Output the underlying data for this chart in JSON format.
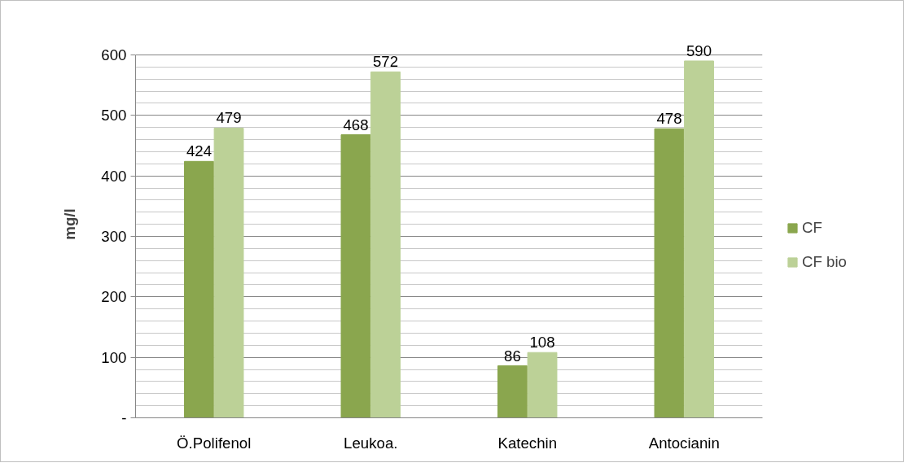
{
  "chart_data": {
    "type": "bar",
    "ylabel": "mg/l",
    "categories": [
      "Ö.Polifenol",
      "Leukoa.",
      "Katechin",
      "Antocianin"
    ],
    "series": [
      {
        "name": "CF",
        "color": "#8aa64e",
        "values": [
          424,
          468,
          86,
          478
        ]
      },
      {
        "name": "CF bio",
        "color": "#bcd197",
        "values": [
          479,
          572,
          108,
          590
        ]
      }
    ],
    "ylim": [
      0,
      600
    ],
    "yticks": [
      {
        "value": 0,
        "label": "-"
      },
      {
        "value": 20,
        "label": null
      },
      {
        "value": 40,
        "label": null
      },
      {
        "value": 60,
        "label": null
      },
      {
        "value": 80,
        "label": null
      },
      100,
      {
        "value": 120,
        "label": null
      },
      {
        "value": 140,
        "label": null
      },
      {
        "value": 160,
        "label": null
      },
      {
        "value": 180,
        "label": null
      },
      200,
      {
        "value": 220,
        "label": null
      },
      {
        "value": 240,
        "label": null
      },
      {
        "value": 260,
        "label": null
      },
      {
        "value": 280,
        "label": null
      },
      300,
      {
        "value": 320,
        "label": null
      },
      {
        "value": 340,
        "label": null
      },
      {
        "value": 360,
        "label": null
      },
      {
        "value": 380,
        "label": null
      },
      400,
      {
        "value": 420,
        "label": null
      },
      {
        "value": 440,
        "label": null
      },
      {
        "value": 460,
        "label": null
      },
      {
        "value": 480,
        "label": null
      },
      500,
      {
        "value": 520,
        "label": null
      },
      {
        "value": 540,
        "label": null
      },
      {
        "value": 560,
        "label": null
      },
      {
        "value": 580,
        "label": null
      },
      600
    ],
    "grid": "y",
    "legend": "right",
    "data_labels": true
  }
}
